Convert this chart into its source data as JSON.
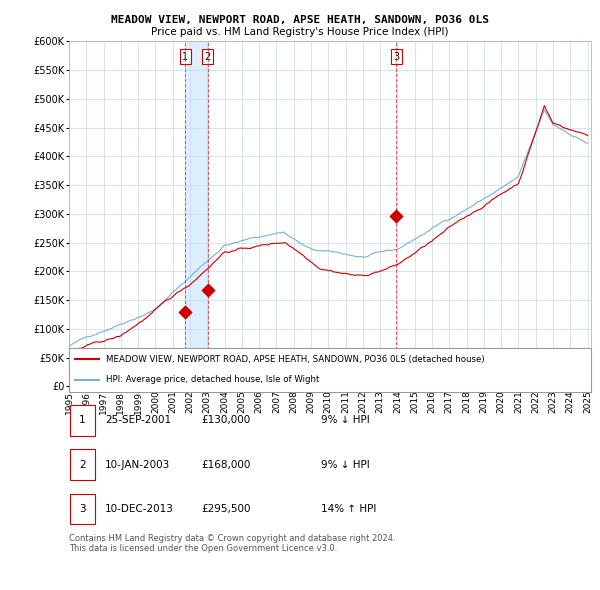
{
  "title": "MEADOW VIEW, NEWPORT ROAD, APSE HEATH, SANDOWN, PO36 0LS",
  "subtitle": "Price paid vs. HM Land Registry's House Price Index (HPI)",
  "ylim": [
    0,
    600000
  ],
  "yticks": [
    0,
    50000,
    100000,
    150000,
    200000,
    250000,
    300000,
    350000,
    400000,
    450000,
    500000,
    550000,
    600000
  ],
  "ytick_labels": [
    "£0",
    "£50K",
    "£100K",
    "£150K",
    "£200K",
    "£250K",
    "£300K",
    "£350K",
    "£400K",
    "£450K",
    "£500K",
    "£550K",
    "£600K"
  ],
  "sale_dates_num": [
    2001.73,
    2003.03,
    2013.94
  ],
  "sale_prices": [
    130000,
    168000,
    295500
  ],
  "sale_labels": [
    "1",
    "2",
    "3"
  ],
  "vline_color": "#cc3333",
  "shade_color": "#ddeeff",
  "sale_color": "#cc0000",
  "hpi_color": "#7ab0d4",
  "legend_label_red": "MEADOW VIEW, NEWPORT ROAD, APSE HEATH, SANDOWN, PO36 0LS (detached house)",
  "legend_label_blue": "HPI: Average price, detached house, Isle of Wight",
  "table_data": [
    [
      "1",
      "25-SEP-2001",
      "£130,000",
      "9% ↓ HPI"
    ],
    [
      "2",
      "10-JAN-2003",
      "£168,000",
      "9% ↓ HPI"
    ],
    [
      "3",
      "10-DEC-2013",
      "£295,500",
      "14% ↑ HPI"
    ]
  ],
  "footnote": "Contains HM Land Registry data © Crown copyright and database right 2024.\nThis data is licensed under the Open Government Licence v3.0.",
  "xlim_start": 1995.0,
  "xlim_end": 2025.2,
  "xtick_years": [
    1995,
    1996,
    1997,
    1998,
    1999,
    2000,
    2001,
    2002,
    2003,
    2004,
    2005,
    2006,
    2007,
    2008,
    2009,
    2010,
    2011,
    2012,
    2013,
    2014,
    2015,
    2016,
    2017,
    2018,
    2019,
    2020,
    2021,
    2022,
    2023,
    2024,
    2025
  ]
}
